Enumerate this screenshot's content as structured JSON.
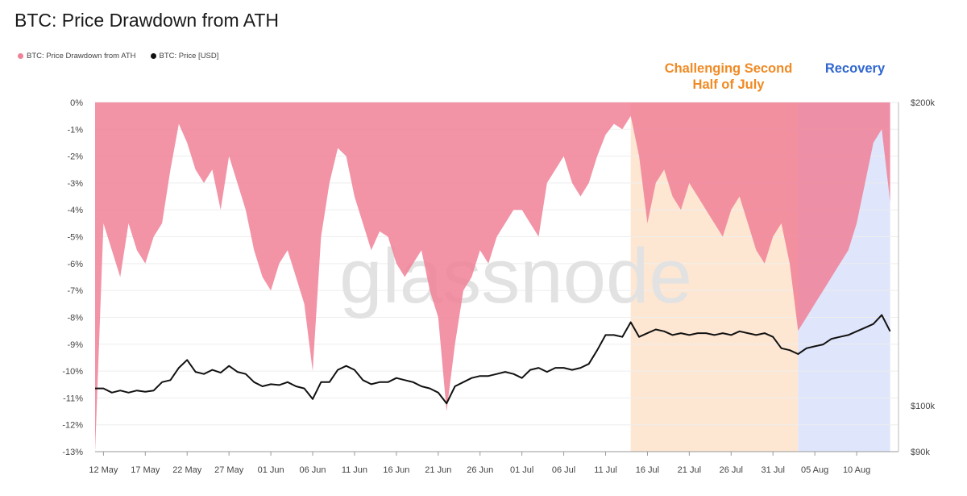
{
  "title": "BTC: Price Drawdown from ATH",
  "legend": [
    {
      "label": "BTC: Price Drawdown from ATH",
      "color": "#f08096"
    },
    {
      "label": "BTC: Price [USD]",
      "color": "#111111"
    }
  ],
  "annotations": {
    "july_line1": "Challenging Second",
    "july_line2": "Half of July",
    "july_color": "#f08a24",
    "recovery": "Recovery",
    "recovery_color": "#2f66d0"
  },
  "watermark": "glassnode",
  "chart_data": {
    "type": "area",
    "x_ticks": [
      "12 May",
      "17 May",
      "22 May",
      "27 May",
      "01 Jun",
      "06 Jun",
      "11 Jun",
      "16 Jun",
      "21 Jun",
      "26 Jun",
      "01 Jul",
      "06 Jul",
      "11 Jul",
      "16 Jul",
      "21 Jul",
      "26 Jul",
      "31 Jul",
      "05 Aug",
      "10 Aug"
    ],
    "y_left_ticks": [
      "0%",
      "-1%",
      "-2%",
      "-3%",
      "-4%",
      "-5%",
      "-6%",
      "-7%",
      "-8%",
      "-9%",
      "-10%",
      "-11%",
      "-12%",
      "-13%"
    ],
    "y_left_range": [
      -13,
      0
    ],
    "y_right_ticks": [
      "$200k",
      "$100k",
      "$90k"
    ],
    "y_right_scale": "log",
    "y_right_range": [
      90000,
      200000
    ],
    "x_range": [
      "2025-05-11",
      "2025-08-15"
    ],
    "grid": true,
    "legend_position": "top-left",
    "highlight_regions": [
      {
        "start": "2025-07-14",
        "end": "2025-08-03",
        "color": "#fde7d3",
        "label": "Challenging Second Half of July"
      },
      {
        "start": "2025-08-03",
        "end": "2025-08-14",
        "color": "#dfe5fb",
        "label": "Recovery"
      }
    ],
    "series": [
      {
        "name": "BTC: Price Drawdown from ATH",
        "color": "#f08096",
        "x": [
          "2025-05-11",
          "2025-05-12",
          "2025-05-13",
          "2025-05-14",
          "2025-05-15",
          "2025-05-16",
          "2025-05-17",
          "2025-05-18",
          "2025-05-19",
          "2025-05-20",
          "2025-05-21",
          "2025-05-22",
          "2025-05-23",
          "2025-05-24",
          "2025-05-25",
          "2025-05-26",
          "2025-05-27",
          "2025-05-28",
          "2025-05-29",
          "2025-05-30",
          "2025-05-31",
          "2025-06-01",
          "2025-06-02",
          "2025-06-03",
          "2025-06-04",
          "2025-06-05",
          "2025-06-06",
          "2025-06-07",
          "2025-06-08",
          "2025-06-09",
          "2025-06-10",
          "2025-06-11",
          "2025-06-12",
          "2025-06-13",
          "2025-06-14",
          "2025-06-15",
          "2025-06-16",
          "2025-06-17",
          "2025-06-18",
          "2025-06-19",
          "2025-06-20",
          "2025-06-21",
          "2025-06-22",
          "2025-06-23",
          "2025-06-24",
          "2025-06-25",
          "2025-06-26",
          "2025-06-27",
          "2025-06-28",
          "2025-06-29",
          "2025-06-30",
          "2025-07-01",
          "2025-07-02",
          "2025-07-03",
          "2025-07-04",
          "2025-07-05",
          "2025-07-06",
          "2025-07-07",
          "2025-07-08",
          "2025-07-09",
          "2025-07-10",
          "2025-07-11",
          "2025-07-12",
          "2025-07-13",
          "2025-07-14",
          "2025-07-15",
          "2025-07-16",
          "2025-07-17",
          "2025-07-18",
          "2025-07-19",
          "2025-07-20",
          "2025-07-21",
          "2025-07-22",
          "2025-07-23",
          "2025-07-24",
          "2025-07-25",
          "2025-07-26",
          "2025-07-27",
          "2025-07-28",
          "2025-07-29",
          "2025-07-30",
          "2025-07-31",
          "2025-08-01",
          "2025-08-02",
          "2025-08-03",
          "2025-08-04",
          "2025-08-05",
          "2025-08-06",
          "2025-08-07",
          "2025-08-08",
          "2025-08-09",
          "2025-08-10",
          "2025-08-11",
          "2025-08-12",
          "2025-08-13",
          "2025-08-14"
        ],
        "values": [
          -13,
          -4.5,
          -5.5,
          -6.5,
          -4.5,
          -5.5,
          -6.0,
          -5.0,
          -4.5,
          -2.5,
          -0.8,
          -1.5,
          -2.5,
          -3.0,
          -2.5,
          -4.0,
          -2.0,
          -3.0,
          -4.0,
          -5.5,
          -6.5,
          -7.0,
          -6.0,
          -5.5,
          -6.5,
          -7.5,
          -10.0,
          -5.0,
          -3.0,
          -1.7,
          -2.0,
          -3.5,
          -4.5,
          -5.5,
          -4.8,
          -5.0,
          -6.0,
          -6.5,
          -6.0,
          -5.5,
          -7.0,
          -8.0,
          -11.5,
          -9.0,
          -7.0,
          -6.5,
          -5.5,
          -6.0,
          -5.0,
          -4.5,
          -4.0,
          -4.0,
          -4.5,
          -5.0,
          -3.0,
          -2.5,
          -2.0,
          -3.0,
          -3.5,
          -3.0,
          -2.0,
          -1.2,
          -0.8,
          -1.0,
          -0.5,
          -2.0,
          -4.5,
          -3.0,
          -2.5,
          -3.5,
          -4.0,
          -3.0,
          -3.5,
          -4.0,
          -4.5,
          -5.0,
          -4.0,
          -3.5,
          -4.5,
          -5.5,
          -6.0,
          -5.0,
          -4.5,
          -6.0,
          -8.5,
          -8.0,
          -7.5,
          -7.0,
          -6.5,
          -6.0,
          -5.5,
          -4.5,
          -3.0,
          -1.5,
          -1.0,
          -3.7
        ]
      },
      {
        "name": "BTC: Price [USD]",
        "color": "#111111",
        "x": [
          "2025-05-11",
          "2025-05-12",
          "2025-05-13",
          "2025-05-14",
          "2025-05-15",
          "2025-05-16",
          "2025-05-17",
          "2025-05-18",
          "2025-05-19",
          "2025-05-20",
          "2025-05-21",
          "2025-05-22",
          "2025-05-23",
          "2025-05-24",
          "2025-05-25",
          "2025-05-26",
          "2025-05-27",
          "2025-05-28",
          "2025-05-29",
          "2025-05-30",
          "2025-05-31",
          "2025-06-01",
          "2025-06-02",
          "2025-06-03",
          "2025-06-04",
          "2025-06-05",
          "2025-06-06",
          "2025-06-07",
          "2025-06-08",
          "2025-06-09",
          "2025-06-10",
          "2025-06-11",
          "2025-06-12",
          "2025-06-13",
          "2025-06-14",
          "2025-06-15",
          "2025-06-16",
          "2025-06-17",
          "2025-06-18",
          "2025-06-19",
          "2025-06-20",
          "2025-06-21",
          "2025-06-22",
          "2025-06-23",
          "2025-06-24",
          "2025-06-25",
          "2025-06-26",
          "2025-06-27",
          "2025-06-28",
          "2025-06-29",
          "2025-06-30",
          "2025-07-01",
          "2025-07-02",
          "2025-07-03",
          "2025-07-04",
          "2025-07-05",
          "2025-07-06",
          "2025-07-07",
          "2025-07-08",
          "2025-07-09",
          "2025-07-10",
          "2025-07-11",
          "2025-07-12",
          "2025-07-13",
          "2025-07-14",
          "2025-07-15",
          "2025-07-16",
          "2025-07-17",
          "2025-07-18",
          "2025-07-19",
          "2025-07-20",
          "2025-07-21",
          "2025-07-22",
          "2025-07-23",
          "2025-07-24",
          "2025-07-25",
          "2025-07-26",
          "2025-07-27",
          "2025-07-28",
          "2025-07-29",
          "2025-07-30",
          "2025-07-31",
          "2025-08-01",
          "2025-08-02",
          "2025-08-03",
          "2025-08-04",
          "2025-08-05",
          "2025-08-06",
          "2025-08-07",
          "2025-08-08",
          "2025-08-09",
          "2025-08-10",
          "2025-08-11",
          "2025-08-12",
          "2025-08-13",
          "2025-08-14"
        ],
        "values": [
          104000,
          104000,
          103000,
          103500,
          103000,
          103500,
          103200,
          103500,
          105500,
          106000,
          109000,
          111000,
          108000,
          107500,
          108500,
          107800,
          109500,
          108000,
          107500,
          105500,
          104500,
          105000,
          104800,
          105500,
          104500,
          104000,
          101500,
          105500,
          105500,
          108500,
          109500,
          108500,
          106000,
          105000,
          105500,
          105500,
          106500,
          106000,
          105500,
          104500,
          104000,
          103000,
          100500,
          104500,
          105500,
          106500,
          107000,
          107000,
          107500,
          108000,
          107500,
          106500,
          108500,
          109000,
          108000,
          109000,
          109000,
          108500,
          109000,
          110000,
          113500,
          117500,
          117500,
          117000,
          121000,
          117000,
          118000,
          119000,
          118500,
          117500,
          118000,
          117500,
          118000,
          118000,
          117500,
          118000,
          117500,
          118500,
          118000,
          117500,
          118000,
          117000,
          114000,
          113500,
          112500,
          114000,
          114500,
          115000,
          116500,
          117000,
          117500,
          118500,
          119500,
          120500,
          123000,
          118500
        ]
      }
    ]
  }
}
